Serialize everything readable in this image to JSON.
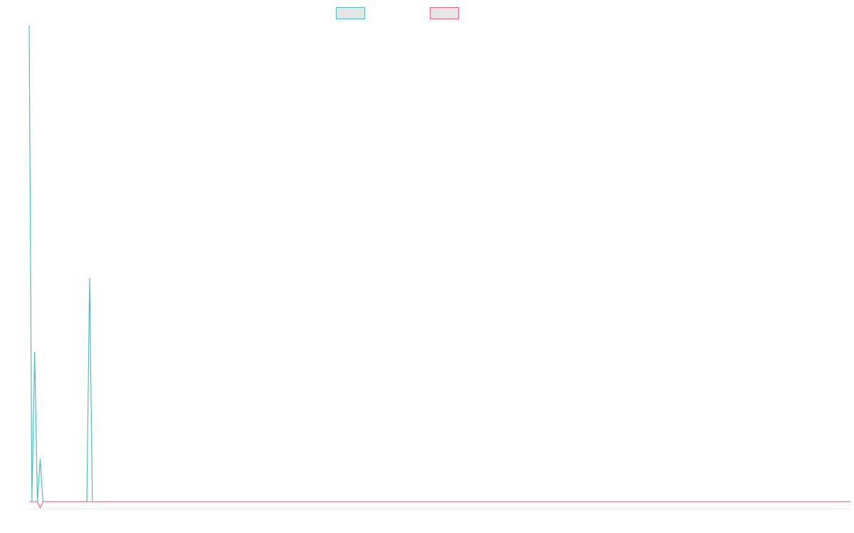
{
  "chart_data": {
    "type": "line",
    "title": "",
    "xlabel": "",
    "ylabel": "",
    "grid": false,
    "legend": "top-center",
    "x_count": 300,
    "ylim": [
      -1.5,
      100
    ],
    "series": [
      {
        "name": "",
        "color": "#4bc0c0",
        "fill": "#e6e6e6",
        "points": [
          [
            0,
            100
          ],
          [
            1,
            0
          ],
          [
            2,
            31.5
          ],
          [
            3,
            0
          ],
          [
            4,
            9
          ],
          [
            5,
            0
          ],
          [
            21,
            0
          ],
          [
            22,
            47
          ],
          [
            23,
            0
          ]
        ]
      },
      {
        "name": "",
        "color": "#ff6384",
        "fill": "#e6e6e6",
        "points": [
          [
            0,
            0
          ],
          [
            3,
            0
          ],
          [
            4,
            -1.3
          ],
          [
            5,
            0
          ]
        ]
      }
    ]
  }
}
